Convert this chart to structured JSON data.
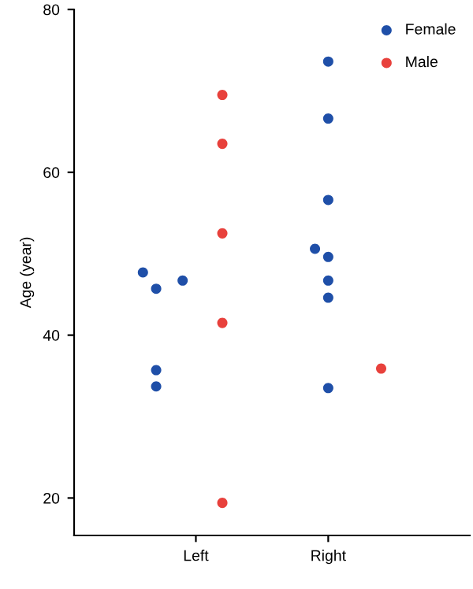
{
  "chart_data": {
    "type": "scatter",
    "ylabel": "Age (year)",
    "categories": [
      null,
      null,
      null,
      null,
      null,
      "Left",
      null,
      null,
      null,
      null,
      null,
      null,
      null,
      null,
      null,
      "Right",
      null,
      null,
      null,
      null,
      null
    ],
    "ylim": [
      15.4,
      80
    ],
    "yticks": [
      20,
      40,
      60,
      80
    ],
    "grid": false,
    "legend": "top right",
    "marker": "circle",
    "series": [
      {
        "name": "Female",
        "color": "#1f4fa8",
        "values": [
          null,
          47.7,
          45.7,
          null,
          46.7,
          null,
          null,
          null,
          null,
          null,
          null,
          null,
          null,
          null,
          50.6,
          73.6,
          null,
          null,
          null,
          null,
          null
        ]
      },
      {
        "color": "#1f4fa8",
        "values": [
          null,
          null,
          35.7,
          null,
          null,
          null,
          null,
          null,
          null,
          null,
          null,
          null,
          null,
          null,
          null,
          66.6,
          null,
          null,
          null,
          null,
          null
        ]
      },
      {
        "color": "#1f4fa8",
        "values": [
          null,
          null,
          33.7,
          null,
          null,
          null,
          null,
          null,
          null,
          null,
          null,
          null,
          null,
          null,
          null,
          56.6,
          null,
          null,
          null,
          null,
          null
        ]
      },
      {
        "color": "#1f4fa8",
        "values": [
          null,
          null,
          null,
          null,
          null,
          null,
          null,
          null,
          null,
          null,
          null,
          null,
          null,
          null,
          null,
          49.6,
          null,
          null,
          null,
          null,
          null
        ]
      },
      {
        "color": "#1f4fa8",
        "values": [
          null,
          null,
          null,
          null,
          null,
          null,
          null,
          null,
          null,
          null,
          null,
          null,
          null,
          null,
          null,
          46.7,
          null,
          null,
          null,
          null,
          null
        ]
      },
      {
        "color": "#1f4fa8",
        "values": [
          null,
          null,
          null,
          null,
          null,
          null,
          null,
          null,
          null,
          null,
          null,
          null,
          null,
          null,
          null,
          44.6,
          null,
          null,
          null,
          null,
          null
        ]
      },
      {
        "color": "#1f4fa8",
        "values": [
          null,
          null,
          null,
          null,
          null,
          null,
          null,
          null,
          null,
          null,
          null,
          null,
          null,
          null,
          null,
          33.5,
          null,
          null,
          null,
          null,
          null
        ]
      },
      {
        "name": "Male",
        "color": "#e8413c",
        "values": [
          null,
          null,
          null,
          null,
          null,
          null,
          null,
          69.5,
          null,
          null,
          null,
          null,
          null,
          null,
          null,
          null,
          null,
          null,
          null,
          35.9,
          null
        ]
      },
      {
        "color": "#e8413c",
        "values": [
          null,
          null,
          null,
          null,
          null,
          null,
          null,
          63.5,
          null,
          null,
          null,
          null,
          null,
          null,
          null,
          null,
          null,
          null,
          null,
          null,
          null
        ]
      },
      {
        "color": "#e8413c",
        "values": [
          null,
          null,
          null,
          null,
          null,
          null,
          null,
          52.5,
          null,
          null,
          null,
          null,
          null,
          null,
          null,
          null,
          null,
          null,
          null,
          null,
          null
        ]
      },
      {
        "color": "#e8413c",
        "values": [
          null,
          null,
          null,
          null,
          null,
          null,
          null,
          41.5,
          null,
          null,
          null,
          null,
          null,
          null,
          null,
          null,
          null,
          null,
          null,
          null,
          null
        ]
      },
      {
        "color": "#e8413c",
        "values": [
          null,
          null,
          null,
          null,
          null,
          null,
          null,
          19.4,
          null,
          null,
          null,
          null,
          null,
          null,
          null,
          null,
          null,
          null,
          null,
          null,
          null
        ]
      }
    ]
  }
}
